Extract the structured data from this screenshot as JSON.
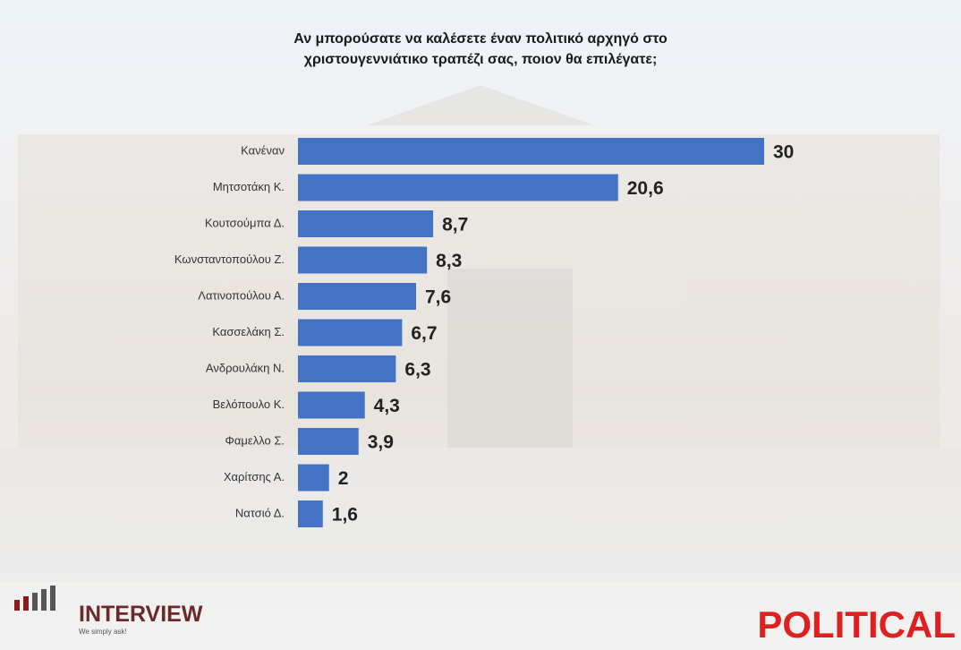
{
  "chart_data": {
    "type": "bar",
    "orientation": "horizontal",
    "title": "Αν μπορούσατε να καλέσετε έναν πολιτικό αρχηγό στο χριστουγεννιάτικο τραπέζι σας, ποιον θα επιλέγατε;",
    "categories": [
      "Κανέναν",
      "Μητσοτάκη Κ.",
      "Κουτσούμπα Δ.",
      "Κωνσταντοπούλου Ζ.",
      "Λατινοπούλου Α.",
      "Κασσελάκη Σ.",
      "Ανδρουλάκη Ν.",
      "Βελόπουλο Κ.",
      "Φαμελλο Σ.",
      "Χαρίτσης Α.",
      "Νατσιό Δ."
    ],
    "values": [
      30,
      20.6,
      8.7,
      8.3,
      7.6,
      6.7,
      6.3,
      4.3,
      3.9,
      2,
      1.6
    ],
    "value_labels": [
      "30",
      "20,6",
      "8,7",
      "8,3",
      "7,6",
      "6,7",
      "6,3",
      "4,3",
      "3,9",
      "2",
      "1,6"
    ],
    "color": "#4472c4"
  },
  "logos": {
    "left": "INTERVIEW",
    "left_tagline": "We simply ask!",
    "right": "POLITICAL"
  }
}
